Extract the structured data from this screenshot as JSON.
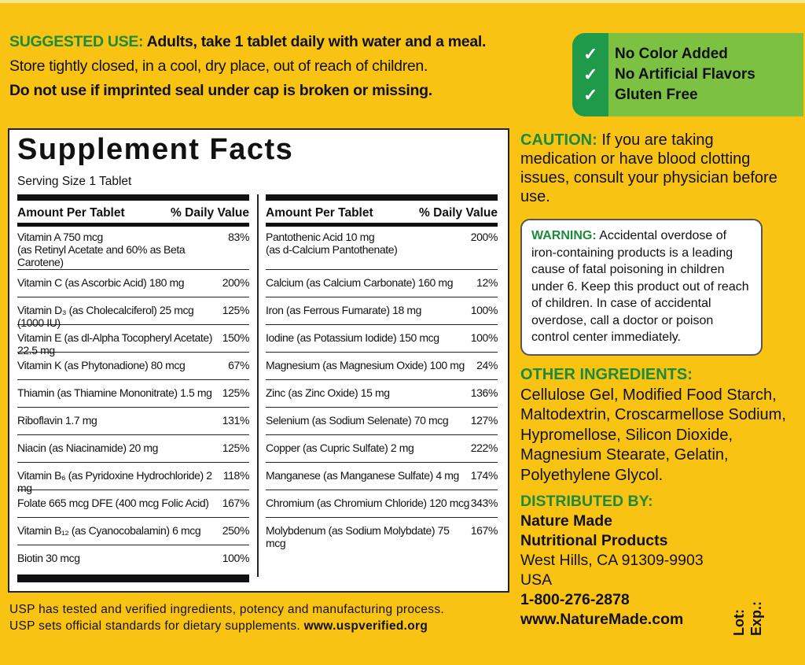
{
  "suggested_use": {
    "label": "SUGGESTED USE:",
    "text": " Adults, take 1 tablet daily with water and a meal.",
    "storage": "Store tightly closed, in a cool, dry place, out of reach of children.",
    "seal": "Do not use if imprinted seal under cap is broken or missing."
  },
  "claims": [
    "No Color Added",
    "No Artificial Flavors",
    "Gluten Free"
  ],
  "facts": {
    "title": "Supplement Facts",
    "serving": "Serving Size 1 Tablet",
    "header_amount": "Amount Per Tablet",
    "header_dv": "% Daily Value",
    "left": [
      {
        "name": "Vitamin A 750 mcg",
        "sub": "(as Retinyl Acetate and 60% as Beta Carotene)",
        "dv": "83%"
      },
      {
        "name": "Vitamin C (as Ascorbic Acid) 180 mg",
        "dv": "200%"
      },
      {
        "name": "Vitamin D₃ (as Cholecalciferol) 25 mcg (1000 IU)",
        "dv": "125%"
      },
      {
        "name": "Vitamin E (as dl-Alpha Tocopheryl Acetate) 22.5 mg",
        "dv": "150%"
      },
      {
        "name": "Vitamin K (as Phytonadione) 80 mcg",
        "dv": "67%"
      },
      {
        "name": "Thiamin (as Thiamine Mononitrate) 1.5 mg",
        "dv": "125%"
      },
      {
        "name": "Riboflavin 1.7 mg",
        "dv": "131%"
      },
      {
        "name": "Niacin (as Niacinamide) 20 mg",
        "dv": "125%"
      },
      {
        "name": "Vitamin B₆ (as Pyridoxine Hydrochloride) 2 mg",
        "dv": "118%"
      },
      {
        "name": "Folate 665 mcg DFE (400 mcg Folic Acid)",
        "dv": "167%"
      },
      {
        "name": "Vitamin B₁₂ (as Cyanocobalamin) 6 mcg",
        "dv": "250%"
      },
      {
        "name": "Biotin 30 mcg",
        "dv": "100%"
      }
    ],
    "right": [
      {
        "name": "Pantothenic Acid 10 mg",
        "sub": "(as d-Calcium Pantothenate)",
        "dv": "200%"
      },
      {
        "name": "Calcium (as Calcium Carbonate) 160 mg",
        "dv": "12%"
      },
      {
        "name": "Iron (as Ferrous Fumarate) 18 mg",
        "dv": "100%"
      },
      {
        "name": "Iodine (as Potassium Iodide) 150 mcg",
        "dv": "100%"
      },
      {
        "name": "Magnesium (as Magnesium Oxide) 100 mg",
        "dv": "24%"
      },
      {
        "name": "Zinc (as Zinc Oxide) 15 mg",
        "dv": "136%"
      },
      {
        "name": "Selenium (as Sodium Selenate) 70 mcg",
        "dv": "127%"
      },
      {
        "name": "Copper (as Cupric Sulfate) 2 mg",
        "dv": "222%"
      },
      {
        "name": "Manganese (as Manganese Sulfate) 4 mg",
        "dv": "174%"
      },
      {
        "name": "Chromium (as Chromium Chloride) 120 mcg",
        "dv": "343%"
      },
      {
        "name": "Molybdenum (as Sodium Molybdate) 75 mcg",
        "dv": "167%"
      }
    ]
  },
  "usp": {
    "line1": "USP has tested and verified ingredients, potency and manufacturing process.",
    "line2": "USP sets official standards for dietary supplements. ",
    "url": "www.uspverified.org"
  },
  "caution": {
    "label": "CAUTION:",
    "text": " If you are taking medication or have blood clotting issues, consult your physician before use."
  },
  "warning": {
    "label": "WARNING:",
    "text": " Accidental overdose of iron-containing products is a leading cause of fatal poisoning in children under 6. Keep this product out of reach of children. In case of accidental overdose, call a doctor or poison control center immediately."
  },
  "other_ingredients": {
    "label": "OTHER INGREDIENTS:",
    "text": "Cellulose Gel, Modified Food Starch, Maltodextrin, Croscarmellose Sodium, Hypromellose, Silicon Dioxide, Magnesium Stearate, Gelatin, Polyethylene Glycol."
  },
  "distributor": {
    "label": "DISTRIBUTED BY:",
    "name1": "Nature Made",
    "name2": "Nutritional Products",
    "address": "West Hills, CA 91309-9903",
    "country": "USA",
    "phone": "1-800-276-2878",
    "web": "www.NatureMade.com"
  },
  "lot": "Lot:",
  "exp": "Exp.:",
  "colors": {
    "background": "#f8c313",
    "green_text": "#1d8a3a",
    "claim_dark": "#1f9a4a",
    "claim_light": "#7dc143"
  }
}
